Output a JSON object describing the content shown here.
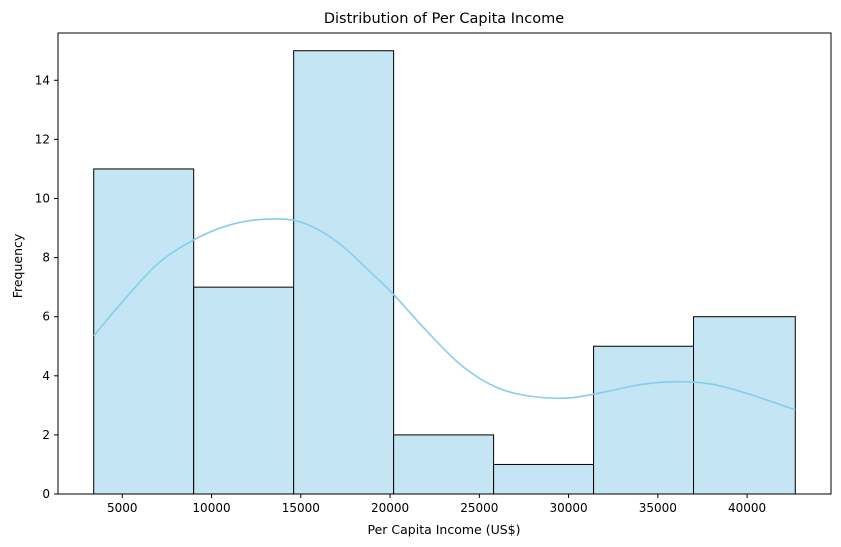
{
  "chart_data": {
    "type": "bar",
    "subtype": "histogram",
    "title": "Distribution of Per Capita Income",
    "xlabel": "Per Capita Income (US$)",
    "ylabel": "Frequency",
    "xlim": [
      1400,
      44700
    ],
    "ylim": [
      0,
      15.6
    ],
    "xticks": [
      5000,
      10000,
      15000,
      20000,
      25000,
      30000,
      35000,
      40000
    ],
    "yticks": [
      0,
      2,
      4,
      6,
      8,
      10,
      12,
      14
    ],
    "bins": [
      {
        "x0": 3400,
        "x1": 9000,
        "count": 11
      },
      {
        "x0": 9000,
        "x1": 14600,
        "count": 7
      },
      {
        "x0": 14600,
        "x1": 20200,
        "count": 15
      },
      {
        "x0": 20200,
        "x1": 25800,
        "count": 2
      },
      {
        "x0": 25800,
        "x1": 31400,
        "count": 1
      },
      {
        "x0": 31400,
        "x1": 37000,
        "count": 5
      },
      {
        "x0": 37000,
        "x1": 42700,
        "count": 6
      }
    ],
    "kde": {
      "x": [
        3400,
        5000,
        7000,
        9000,
        11000,
        13000,
        15000,
        17000,
        19000,
        20200,
        22000,
        24000,
        26000,
        28000,
        30000,
        32000,
        34000,
        36000,
        38000,
        40000,
        42700
      ],
      "y": [
        5.35,
        6.5,
        7.8,
        8.6,
        9.1,
        9.3,
        9.2,
        8.55,
        7.45,
        6.75,
        5.55,
        4.35,
        3.6,
        3.3,
        3.25,
        3.45,
        3.7,
        3.8,
        3.72,
        3.4,
        2.85
      ]
    },
    "grid": false,
    "legend": "none",
    "colors": {
      "bar_fill": "#c3e5f4",
      "bar_edge": "#000000",
      "kde_line": "#87ceeb"
    }
  }
}
